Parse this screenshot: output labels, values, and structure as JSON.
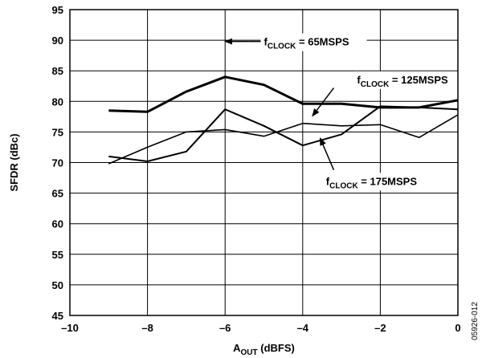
{
  "chart_data": {
    "type": "line",
    "title": "",
    "xlabel": {
      "main": "A",
      "sub": "OUT",
      "rest": " (dBFS)"
    },
    "ylabel": "SFDR (dBc)",
    "xlim": [
      -10,
      0
    ],
    "ylim": [
      45,
      95
    ],
    "x_ticks": [
      -10,
      -8,
      -6,
      -4,
      -2,
      0
    ],
    "x_tick_labels": [
      "–10",
      "–8",
      "–6",
      "–4",
      "–2",
      "0"
    ],
    "x_grid": [
      -10,
      -8,
      -6,
      -4,
      -2,
      0
    ],
    "y_ticks": [
      45,
      50,
      55,
      60,
      65,
      70,
      75,
      80,
      85,
      90,
      95
    ],
    "grid": true,
    "figure_id": "05926-012",
    "series": [
      {
        "name": "fCLOCK = 65MSPS",
        "label_main": "f",
        "label_sub": "CLOCK",
        "label_rest": " = 65MSPS",
        "line_width": 3,
        "x": [
          -9,
          -8,
          -7,
          -6,
          -5,
          -4,
          -3,
          -2,
          -1,
          0
        ],
        "y": [
          78.5,
          78.3,
          81.6,
          84.0,
          82.7,
          79.6,
          79.6,
          79.0,
          79.0,
          80.2
        ]
      },
      {
        "name": "fCLOCK = 125MSPS",
        "label_main": "f",
        "label_sub": "CLOCK",
        "label_rest": " = 125MSPS",
        "line_width": 1.6,
        "x": [
          -9,
          -8,
          -7,
          -6,
          -5,
          -4,
          -3,
          -2,
          -1,
          0
        ],
        "y": [
          69.8,
          72.5,
          75.0,
          75.4,
          74.3,
          76.4,
          76.0,
          76.2,
          74.1,
          77.8
        ]
      },
      {
        "name": "fCLOCK = 175MSPS",
        "label_main": "f",
        "label_sub": "CLOCK",
        "label_rest": " = 175MSPS",
        "line_width": 2,
        "x": [
          -9,
          -8,
          -7,
          -6,
          -5,
          -4,
          -3,
          -2,
          -1,
          0
        ],
        "y": [
          71.0,
          70.2,
          71.8,
          78.7,
          76.0,
          72.8,
          74.6,
          79.2,
          79.0,
          78.7
        ]
      }
    ],
    "annotations": [
      {
        "series": 0,
        "text_x": -5.0,
        "text_y": 89.8,
        "arrow_from": [
          -5.4,
          89.8
        ],
        "arrow_to": [
          -6.0,
          89.8
        ],
        "line_to": [
          -3.0,
          89.8
        ]
      },
      {
        "series": 1,
        "text_x": -2.6,
        "text_y": 83.6,
        "arrow_from": [
          -3.2,
          82.2
        ],
        "arrow_to": [
          -3.75,
          77.6
        ]
      },
      {
        "series": 2,
        "text_x": -3.4,
        "text_y": 67.0,
        "arrow_from": [
          -3.2,
          68.8
        ],
        "arrow_to": [
          -3.55,
          74.0
        ]
      }
    ]
  }
}
